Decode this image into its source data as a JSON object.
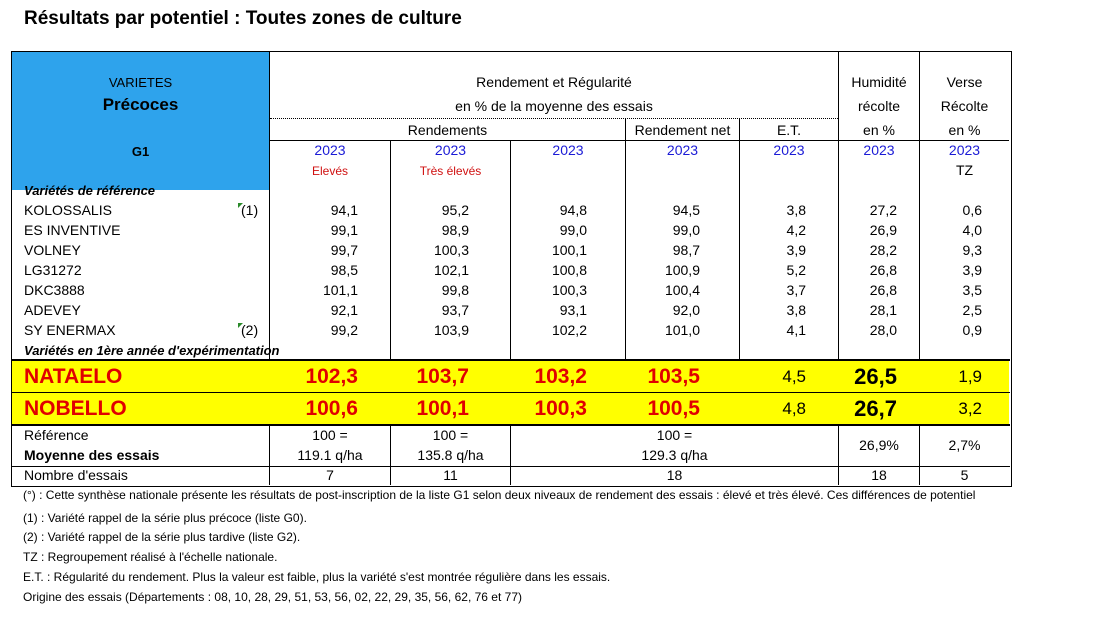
{
  "title": "Résultats par potentiel : Toutes zones de culture",
  "header": {
    "varietes": "VARIETES",
    "precoces": "Précoces",
    "g1": "G1",
    "rendement_regularite": "Rendement et Régularité",
    "pct_moyenne": "en % de la moyenne des essais",
    "rendements": "Rendements",
    "rendement_net": "Rendement net",
    "et": "E.T.",
    "humidite": "Humidité",
    "recolte": "récolte",
    "en_pct_h": "en %",
    "verse": "Verse",
    "verse_recolte": "Récolte",
    "en_pct_v": "en %",
    "years": [
      "2023",
      "2023",
      "2023",
      "2023",
      "2023",
      "2023",
      "2023"
    ],
    "eleves": "Elevés",
    "tres_eleves": "Très élevés",
    "tz": "TZ"
  },
  "section_reference": "Variétés de référence",
  "section_new": "Variétés en 1ère année d'expérimentation",
  "rows": [
    {
      "name": "KOLOSSALIS",
      "note": "(1)",
      "v": [
        "94,1",
        "95,2",
        "94,8",
        "94,5",
        "3,8",
        "27,2",
        "0,6"
      ]
    },
    {
      "name": "ES INVENTIVE",
      "note": "",
      "v": [
        "99,1",
        "98,9",
        "99,0",
        "99,0",
        "4,2",
        "26,9",
        "4,0"
      ]
    },
    {
      "name": "VOLNEY",
      "note": "",
      "v": [
        "99,7",
        "100,3",
        "100,1",
        "98,7",
        "3,9",
        "28,2",
        "9,3"
      ]
    },
    {
      "name": "LG31272",
      "note": "",
      "v": [
        "98,5",
        "102,1",
        "100,8",
        "100,9",
        "5,2",
        "26,8",
        "3,9"
      ]
    },
    {
      "name": "DKC3888",
      "note": "",
      "v": [
        "101,1",
        "99,8",
        "100,3",
        "100,4",
        "3,7",
        "26,8",
        "3,5"
      ]
    },
    {
      "name": "ADEVEY",
      "note": "",
      "v": [
        "92,1",
        "93,7",
        "93,1",
        "92,0",
        "3,8",
        "28,1",
        "2,5"
      ]
    },
    {
      "name": "SY ENERMAX",
      "note": "(2)",
      "v": [
        "99,2",
        "103,9",
        "102,2",
        "101,0",
        "4,1",
        "28,0",
        "0,9"
      ]
    }
  ],
  "highlight_rows": [
    {
      "name": "NATAELO",
      "v": [
        "102,3",
        "103,7",
        "103,2",
        "103,5",
        "4,5",
        "26,5",
        "1,9"
      ]
    },
    {
      "name": "NOBELLO",
      "v": [
        "100,6",
        "100,1",
        "100,3",
        "100,5",
        "4,8",
        "26,7",
        "3,2"
      ]
    }
  ],
  "footer": {
    "reference": "Référence",
    "moyenne": "Moyenne des essais",
    "ref_eq": [
      "100 =",
      "100 =",
      "100 ="
    ],
    "ref_vals": [
      "119.1 q/ha",
      "135.8 q/ha",
      "129.3 q/ha"
    ],
    "humidite_moy": "26,9%",
    "verse_moy": "2,7%",
    "nombre_label": "Nombre d'essais",
    "nombre_vals": [
      "7",
      "11",
      "18",
      "18",
      "5"
    ]
  },
  "notes": [
    "(°) : Cette synthèse nationale présente les résultats de post-inscription de la liste G1 selon deux niveaux de rendement des essais : élevé et très élevé. Ces différences de potentiel",
    "(1) : Variété rappel de la série plus précoce (liste G0).",
    "(2) : Variété rappel de la série plus tardive (liste G2).",
    "TZ : Regroupement réalisé à l'échelle nationale.",
    "E.T. : Régularité du rendement. Plus la valeur est faible, plus la variété s'est montrée régulière dans les essais.",
    "Origine des essais (Départements : 08, 10, 28, 29, 51, 53, 56, 02, 22, 29, 35, 56, 62, 76 et 77)"
  ],
  "colors": {
    "header_blue": "#2ea3ec",
    "highlight_yellow": "#ffff00",
    "year_blue": "#1a1ad6",
    "accent_red": "#e00000"
  }
}
